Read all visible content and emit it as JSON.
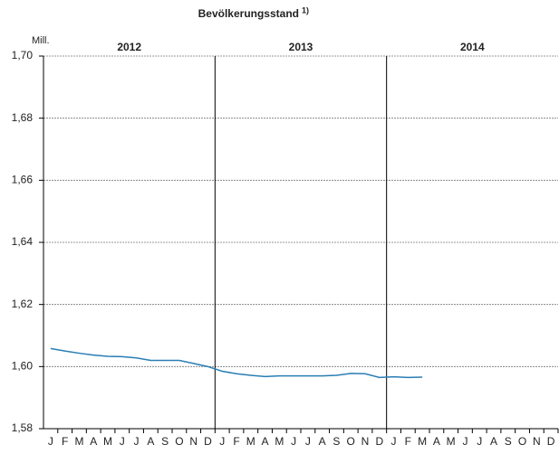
{
  "chart_data": {
    "type": "line",
    "title": "Bevölkerungsstand",
    "title_note": "1)",
    "y_unit": "Mill.",
    "groups": [
      "2012",
      "2013",
      "2014"
    ],
    "categories": [
      "J",
      "F",
      "M",
      "A",
      "M",
      "J",
      "J",
      "A",
      "S",
      "O",
      "N",
      "D",
      "J",
      "F",
      "M",
      "A",
      "M",
      "J",
      "J",
      "A",
      "S",
      "O",
      "N",
      "D",
      "J",
      "F",
      "M",
      "A",
      "M",
      "J",
      "J",
      "A",
      "S",
      "O",
      "N",
      "D"
    ],
    "series": [
      {
        "color": "#2a7db4",
        "values": [
          1.6058,
          1.605,
          1.6043,
          1.6037,
          1.6033,
          1.6032,
          1.6028,
          1.602,
          1.602,
          1.602,
          1.601,
          1.6,
          1.5985,
          1.5977,
          1.5972,
          1.5968,
          1.597,
          1.597,
          1.597,
          1.597,
          1.5972,
          1.5978,
          1.5977,
          1.5965,
          1.5967,
          1.5965,
          1.5966,
          null,
          null,
          null,
          null,
          null,
          null,
          null,
          null,
          null
        ]
      }
    ],
    "ylim": [
      1.58,
      1.7
    ],
    "yticks": [
      {
        "value": 1.58,
        "label": "1,58"
      },
      {
        "value": 1.6,
        "label": "1,60"
      },
      {
        "value": 1.62,
        "label": "1,62"
      },
      {
        "value": 1.64,
        "label": "1,64"
      },
      {
        "value": 1.66,
        "label": "1,66"
      },
      {
        "value": 1.68,
        "label": "1,68"
      },
      {
        "value": 1.7,
        "label": "1,70"
      }
    ],
    "grid": true
  }
}
